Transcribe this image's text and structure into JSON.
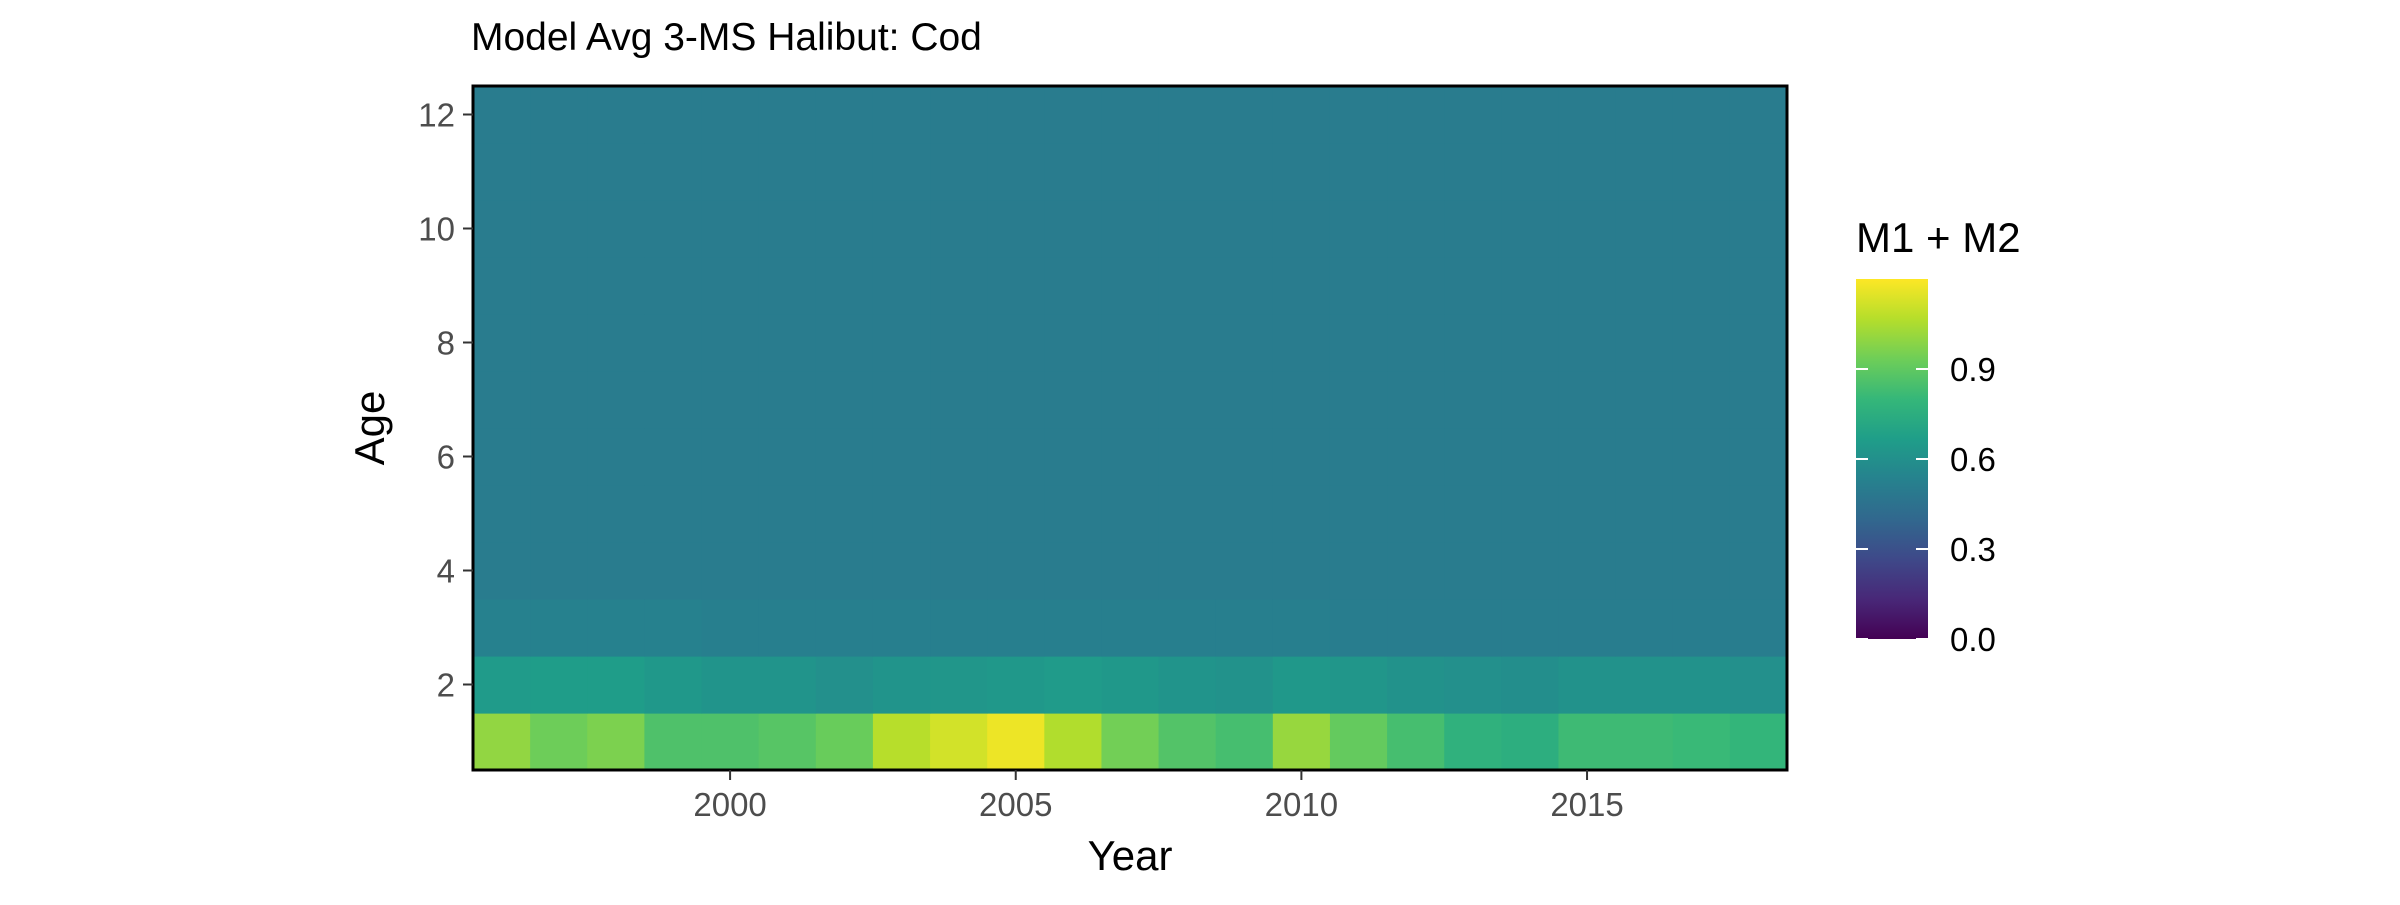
{
  "chart_data": {
    "type": "heatmap",
    "title": "Model Avg 3-MS Halibut: Cod",
    "xlabel": "Year",
    "ylabel": "Age",
    "x_ticks": [
      2000,
      2005,
      2010,
      2015
    ],
    "y_ticks": [
      2,
      4,
      6,
      8,
      10,
      12
    ],
    "xlim": [
      1995.5,
      2018.5
    ],
    "ylim": [
      0.5,
      12.5
    ],
    "grid": false,
    "colorscale": "viridis",
    "color_range": [
      0,
      1.2
    ],
    "legend": {
      "title": "M1 + M2",
      "position": "right",
      "ticks": [
        0.0,
        0.3,
        0.6,
        0.9
      ],
      "tick_labels": [
        "0.0",
        "0.3",
        "0.6",
        "0.9"
      ]
    },
    "years": [
      1996,
      1997,
      1998,
      1999,
      2000,
      2001,
      2002,
      2003,
      2004,
      2005,
      2006,
      2007,
      2008,
      2009,
      2010,
      2011,
      2012,
      2013,
      2014,
      2015,
      2016,
      2017,
      2018
    ],
    "ages": [
      1,
      2,
      3,
      4,
      5,
      6,
      7,
      8,
      9,
      10,
      11,
      12
    ],
    "rows": [
      {
        "age": 1,
        "values": [
          1.0,
          0.93,
          0.96,
          0.86,
          0.86,
          0.88,
          0.92,
          1.07,
          1.12,
          1.17,
          1.06,
          0.94,
          0.87,
          0.84,
          1.01,
          0.91,
          0.84,
          0.77,
          0.75,
          0.82,
          0.82,
          0.81,
          0.79
        ]
      },
      {
        "age": 2,
        "values": [
          0.65,
          0.66,
          0.66,
          0.64,
          0.62,
          0.62,
          0.6,
          0.62,
          0.63,
          0.64,
          0.65,
          0.64,
          0.62,
          0.61,
          0.64,
          0.63,
          0.61,
          0.6,
          0.59,
          0.61,
          0.61,
          0.61,
          0.6
        ]
      },
      {
        "age": 3,
        "values": [
          0.53,
          0.53,
          0.53,
          0.53,
          0.52,
          0.52,
          0.52,
          0.52,
          0.52,
          0.52,
          0.52,
          0.52,
          0.52,
          0.52,
          0.52,
          0.51,
          0.51,
          0.51,
          0.51,
          0.51,
          0.51,
          0.51,
          0.51
        ]
      },
      {
        "age": 4,
        "values": [
          0.5,
          0.5,
          0.5,
          0.5,
          0.5,
          0.5,
          0.5,
          0.5,
          0.5,
          0.5,
          0.5,
          0.5,
          0.5,
          0.5,
          0.5,
          0.5,
          0.5,
          0.5,
          0.5,
          0.5,
          0.5,
          0.5,
          0.5
        ]
      },
      {
        "age": 5,
        "values": [
          0.5,
          0.5,
          0.5,
          0.5,
          0.5,
          0.5,
          0.5,
          0.5,
          0.5,
          0.5,
          0.5,
          0.5,
          0.5,
          0.5,
          0.5,
          0.5,
          0.5,
          0.5,
          0.5,
          0.5,
          0.5,
          0.5,
          0.5
        ]
      },
      {
        "age": 6,
        "values": [
          0.5,
          0.5,
          0.5,
          0.5,
          0.5,
          0.5,
          0.5,
          0.5,
          0.5,
          0.5,
          0.5,
          0.5,
          0.5,
          0.5,
          0.5,
          0.5,
          0.5,
          0.5,
          0.5,
          0.5,
          0.5,
          0.5,
          0.5
        ]
      },
      {
        "age": 7,
        "values": [
          0.5,
          0.5,
          0.5,
          0.5,
          0.5,
          0.5,
          0.5,
          0.5,
          0.5,
          0.5,
          0.5,
          0.5,
          0.5,
          0.5,
          0.5,
          0.5,
          0.5,
          0.5,
          0.5,
          0.5,
          0.5,
          0.5,
          0.5
        ]
      },
      {
        "age": 8,
        "values": [
          0.5,
          0.5,
          0.5,
          0.5,
          0.5,
          0.5,
          0.5,
          0.5,
          0.5,
          0.5,
          0.5,
          0.5,
          0.5,
          0.5,
          0.5,
          0.5,
          0.5,
          0.5,
          0.5,
          0.5,
          0.5,
          0.5,
          0.5
        ]
      },
      {
        "age": 9,
        "values": [
          0.5,
          0.5,
          0.5,
          0.5,
          0.5,
          0.5,
          0.5,
          0.5,
          0.5,
          0.5,
          0.5,
          0.5,
          0.5,
          0.5,
          0.5,
          0.5,
          0.5,
          0.5,
          0.5,
          0.5,
          0.5,
          0.5,
          0.5
        ]
      },
      {
        "age": 10,
        "values": [
          0.5,
          0.5,
          0.5,
          0.5,
          0.5,
          0.5,
          0.5,
          0.5,
          0.5,
          0.5,
          0.5,
          0.5,
          0.5,
          0.5,
          0.5,
          0.5,
          0.5,
          0.5,
          0.5,
          0.5,
          0.5,
          0.5,
          0.5
        ]
      },
      {
        "age": 11,
        "values": [
          0.5,
          0.5,
          0.5,
          0.5,
          0.5,
          0.5,
          0.5,
          0.5,
          0.5,
          0.5,
          0.5,
          0.5,
          0.5,
          0.5,
          0.5,
          0.5,
          0.5,
          0.5,
          0.5,
          0.5,
          0.5,
          0.5,
          0.5
        ]
      },
      {
        "age": 12,
        "values": [
          0.5,
          0.5,
          0.5,
          0.5,
          0.5,
          0.5,
          0.5,
          0.5,
          0.5,
          0.5,
          0.5,
          0.5,
          0.5,
          0.5,
          0.5,
          0.5,
          0.5,
          0.5,
          0.5,
          0.5,
          0.5,
          0.5,
          0.5
        ]
      }
    ],
    "colors": {
      "viridis": [
        "#440154",
        "#482878",
        "#3e4989",
        "#31688e",
        "#26828e",
        "#1f9e89",
        "#35b779",
        "#6ece58",
        "#b5de2b",
        "#fde725"
      ],
      "panel_border": "#000000",
      "tick_label": "#4d4d4d"
    }
  }
}
